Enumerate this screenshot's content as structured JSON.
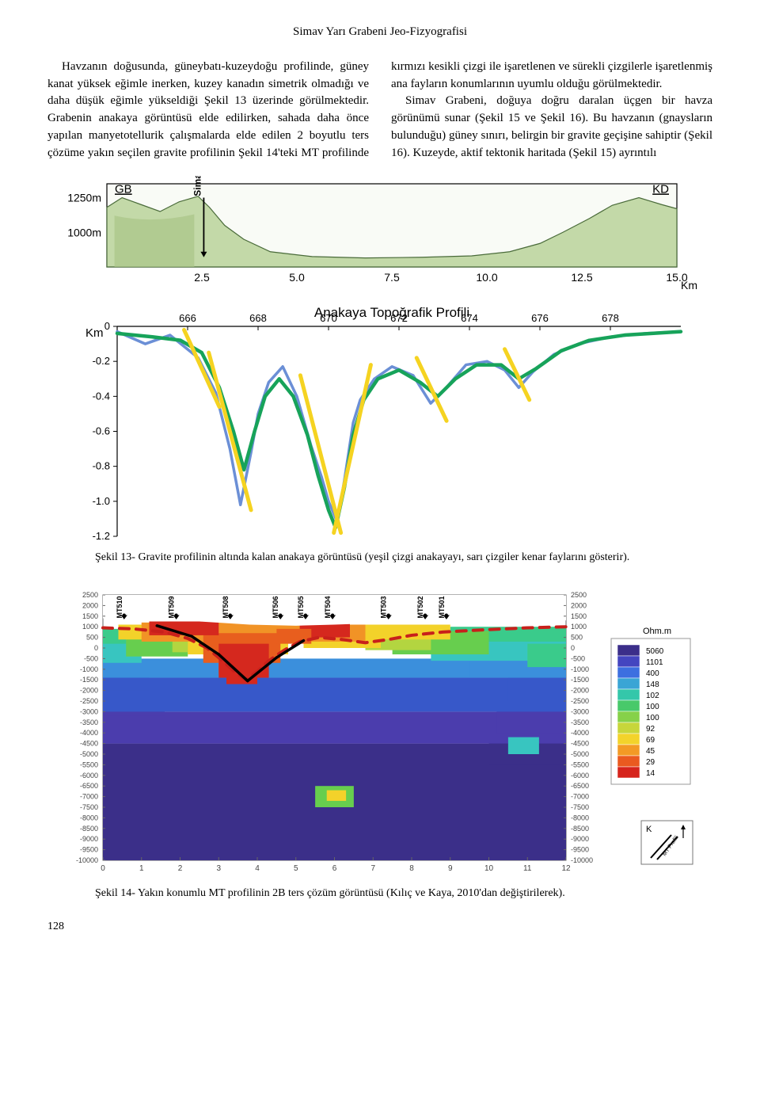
{
  "header": "Simav Yarı Grabeni Jeo-Fizyografisi",
  "body": {
    "para1": "Havzanın doğusunda, güneybatı-kuzeydoğu profilinde, güney kanat yüksek eğimle inerken, kuzey kanadın simetrik olmadığı ve daha düşük eğimle yükseldiği Şekil 13 üzerinde görülmektedir. Grabenin anakaya görüntüsü elde edilirken, sahada daha önce yapılan manyetotellurik çalışmalarda elde edilen 2 boyutlu ters çözüme yakın seçilen gravite profilinin Şekil 14'teki MT profilinde kırmızı kesikli çizgi ile işaretlenen ve sürekli çizgilerle işaretlenmiş ana fayların konumlarının uyumlu olduğu görülmektedir.",
    "para2": "Simav Grabeni, doğuya doğru daralan üçgen bir havza görünümü sunar (Şekil 15 ve Şekil 16). Bu havzanın (gnaysların bulunduğu) güney sınırı, belirgin bir gravite geçişine sahiptir (Şekil 16). Kuzeyde, aktif tektonik haritada (Şekil 15) ayrıntılı"
  },
  "fig13": {
    "caption_label": "Şekil 13-",
    "caption_text": "Gravite profilinin altında kalan anakaya görüntüsü (yeşil çizgi anakayayı, sarı çizgiler kenar faylarını gösterir).",
    "top_panel": {
      "left_label": "GB",
      "right_label": "KD",
      "simav_label": "Simav",
      "y_ticks": [
        "1250m",
        "1000m"
      ],
      "x_ticks": [
        "2.5",
        "5.0",
        "7.5",
        "10.0",
        "12.5",
        "15.0"
      ],
      "x_unit": "Km",
      "terrain_fill": "#c3d9a8",
      "terrain_shadow": "#a9c487",
      "terrain": [
        [
          0,
          1180
        ],
        [
          0.4,
          1250
        ],
        [
          0.9,
          1200
        ],
        [
          1.4,
          1150
        ],
        [
          1.9,
          1220
        ],
        [
          2.4,
          1260
        ],
        [
          2.7,
          1180
        ],
        [
          3.1,
          1050
        ],
        [
          3.6,
          950
        ],
        [
          4.3,
          860
        ],
        [
          5.4,
          825
        ],
        [
          6.8,
          815
        ],
        [
          8.3,
          820
        ],
        [
          9.6,
          830
        ],
        [
          10.6,
          860
        ],
        [
          11.4,
          920
        ],
        [
          12.0,
          1000
        ],
        [
          12.7,
          1100
        ],
        [
          13.3,
          1195
        ],
        [
          14.0,
          1250
        ],
        [
          14.6,
          1200
        ],
        [
          15.0,
          1170
        ]
      ],
      "y_domain": [
        750,
        1350
      ],
      "x_domain": [
        0,
        15.0
      ]
    },
    "bottom_panel": {
      "title": "Anakaya Topoğrafik Profili",
      "y_label": "Km",
      "y_ticks": [
        "0",
        "-0.2",
        "-0.4",
        "-0.6",
        "-0.8",
        "-1.0",
        "-1.2"
      ],
      "x_ticks": [
        "666",
        "668",
        "670",
        "672",
        "674",
        "676",
        "678"
      ],
      "y_domain": [
        -1.2,
        0
      ],
      "x_domain": [
        664,
        680
      ],
      "blue_line_color": "#6b8fd6",
      "blue_line_width": 3.5,
      "green_line_color": "#17a35a",
      "green_line_width": 4.5,
      "fault_color": "#f5d321",
      "fault_width": 5,
      "blue_line": [
        [
          664,
          -0.03
        ],
        [
          664.8,
          -0.1
        ],
        [
          665.5,
          -0.05
        ],
        [
          666.3,
          -0.18
        ],
        [
          666.8,
          -0.38
        ],
        [
          667.2,
          -0.7
        ],
        [
          667.5,
          -1.02
        ],
        [
          667.8,
          -0.72
        ],
        [
          668.0,
          -0.5
        ],
        [
          668.3,
          -0.32
        ],
        [
          668.7,
          -0.23
        ],
        [
          669.1,
          -0.4
        ],
        [
          669.5,
          -0.68
        ],
        [
          669.8,
          -0.86
        ],
        [
          670.0,
          -1.0
        ],
        [
          670.25,
          -1.12
        ],
        [
          670.45,
          -0.88
        ],
        [
          670.7,
          -0.55
        ],
        [
          670.9,
          -0.42
        ],
        [
          671.3,
          -0.3
        ],
        [
          671.8,
          -0.23
        ],
        [
          672.4,
          -0.28
        ],
        [
          672.9,
          -0.44
        ],
        [
          673.3,
          -0.36
        ],
        [
          673.9,
          -0.22
        ],
        [
          674.5,
          -0.2
        ],
        [
          675.0,
          -0.25
        ],
        [
          675.4,
          -0.35
        ],
        [
          675.8,
          -0.26
        ],
        [
          676.4,
          -0.16
        ],
        [
          677.1,
          -0.1
        ],
        [
          678.0,
          -0.06
        ],
        [
          679.0,
          -0.04
        ],
        [
          680.0,
          -0.03
        ]
      ],
      "green_line": [
        [
          664,
          -0.04
        ],
        [
          665.0,
          -0.06
        ],
        [
          665.8,
          -0.08
        ],
        [
          666.4,
          -0.15
        ],
        [
          666.9,
          -0.35
        ],
        [
          667.3,
          -0.6
        ],
        [
          667.6,
          -0.82
        ],
        [
          667.9,
          -0.6
        ],
        [
          668.2,
          -0.4
        ],
        [
          668.6,
          -0.3
        ],
        [
          669.0,
          -0.4
        ],
        [
          669.4,
          -0.62
        ],
        [
          669.7,
          -0.85
        ],
        [
          670.0,
          -1.05
        ],
        [
          670.2,
          -1.15
        ],
        [
          670.45,
          -0.92
        ],
        [
          670.7,
          -0.62
        ],
        [
          671.0,
          -0.42
        ],
        [
          671.4,
          -0.3
        ],
        [
          672.0,
          -0.25
        ],
        [
          672.6,
          -0.32
        ],
        [
          673.1,
          -0.4
        ],
        [
          673.6,
          -0.3
        ],
        [
          674.2,
          -0.22
        ],
        [
          674.9,
          -0.22
        ],
        [
          675.4,
          -0.3
        ],
        [
          675.9,
          -0.24
        ],
        [
          676.6,
          -0.14
        ],
        [
          677.4,
          -0.08
        ],
        [
          678.4,
          -0.05
        ],
        [
          680.0,
          -0.03
        ]
      ],
      "faults": [
        [
          [
            665.9,
            -0.02
          ],
          [
            666.9,
            -0.46
          ]
        ],
        [
          [
            666.6,
            -0.15
          ],
          [
            667.8,
            -1.05
          ]
        ],
        [
          [
            669.2,
            -0.28
          ],
          [
            670.35,
            -1.18
          ]
        ],
        [
          [
            670.15,
            -1.18
          ],
          [
            671.2,
            -0.22
          ]
        ],
        [
          [
            672.5,
            -0.18
          ],
          [
            673.35,
            -0.54
          ]
        ],
        [
          [
            675.0,
            -0.13
          ],
          [
            675.7,
            -0.42
          ]
        ]
      ]
    }
  },
  "fig14": {
    "caption_label": "Şekil 14-",
    "caption_text": "Yakın konumlu MT profilinin 2B ters çözüm görüntüsü (Kılıç ve Kaya, 2010'dan değiştirilerek).",
    "y_ticks": [
      2500,
      2000,
      1500,
      1000,
      500,
      0,
      -500,
      -1000,
      -1500,
      -2000,
      -2500,
      -3000,
      -3500,
      -4000,
      -4500,
      -5000,
      -5500,
      -6000,
      -6500,
      -7000,
      -7500,
      -8000,
      -8500,
      -9000,
      -9500,
      -10000
    ],
    "x_ticks": [
      0,
      1,
      2,
      3,
      4,
      5,
      6,
      7,
      8,
      9,
      10,
      11,
      12
    ],
    "stations": [
      {
        "label": "MT510",
        "x": 0.55
      },
      {
        "label": "MT509",
        "x": 1.9
      },
      {
        "label": "MT508",
        "x": 3.3
      },
      {
        "label": "MT506",
        "x": 4.6
      },
      {
        "label": "MT505",
        "x": 5.25
      },
      {
        "label": "MT504",
        "x": 5.95
      },
      {
        "label": "MT503",
        "x": 7.4
      },
      {
        "label": "MT502",
        "x": 8.35
      },
      {
        "label": "MT501",
        "x": 8.9
      }
    ],
    "legend_title": "Ohm.m",
    "legend_values": [
      "5060",
      "1101",
      "400",
      "148",
      "102",
      "100",
      "100",
      "92",
      "69",
      "45",
      "29",
      "14"
    ],
    "legend_colors": [
      "#3b2e8a",
      "#4445c0",
      "#3d6fe0",
      "#3aa5d5",
      "#34c7aa",
      "#48c96a",
      "#86d149",
      "#c7d63b",
      "#f3d32b",
      "#f39a25",
      "#ea5a1f",
      "#d6241c"
    ],
    "red_dash_color": "#c8201b",
    "black_line_color": "#000000",
    "terrain_color": "#ffffff",
    "colors": {
      "deep_purple": "#3b2f89",
      "purple": "#4b3dad",
      "blue": "#3758c9",
      "lightblue": "#3b8fdc",
      "cyan": "#38c5c0",
      "teal": "#3acb8b",
      "green": "#67ce4e",
      "yellowgreen": "#b3d540",
      "yellow": "#f3d22a",
      "orange": "#f19326",
      "darkorange": "#e85e1e",
      "red": "#d5281e"
    },
    "compass": {
      "label": "K",
      "profile": "MT Profili"
    }
  },
  "page_number": "128"
}
